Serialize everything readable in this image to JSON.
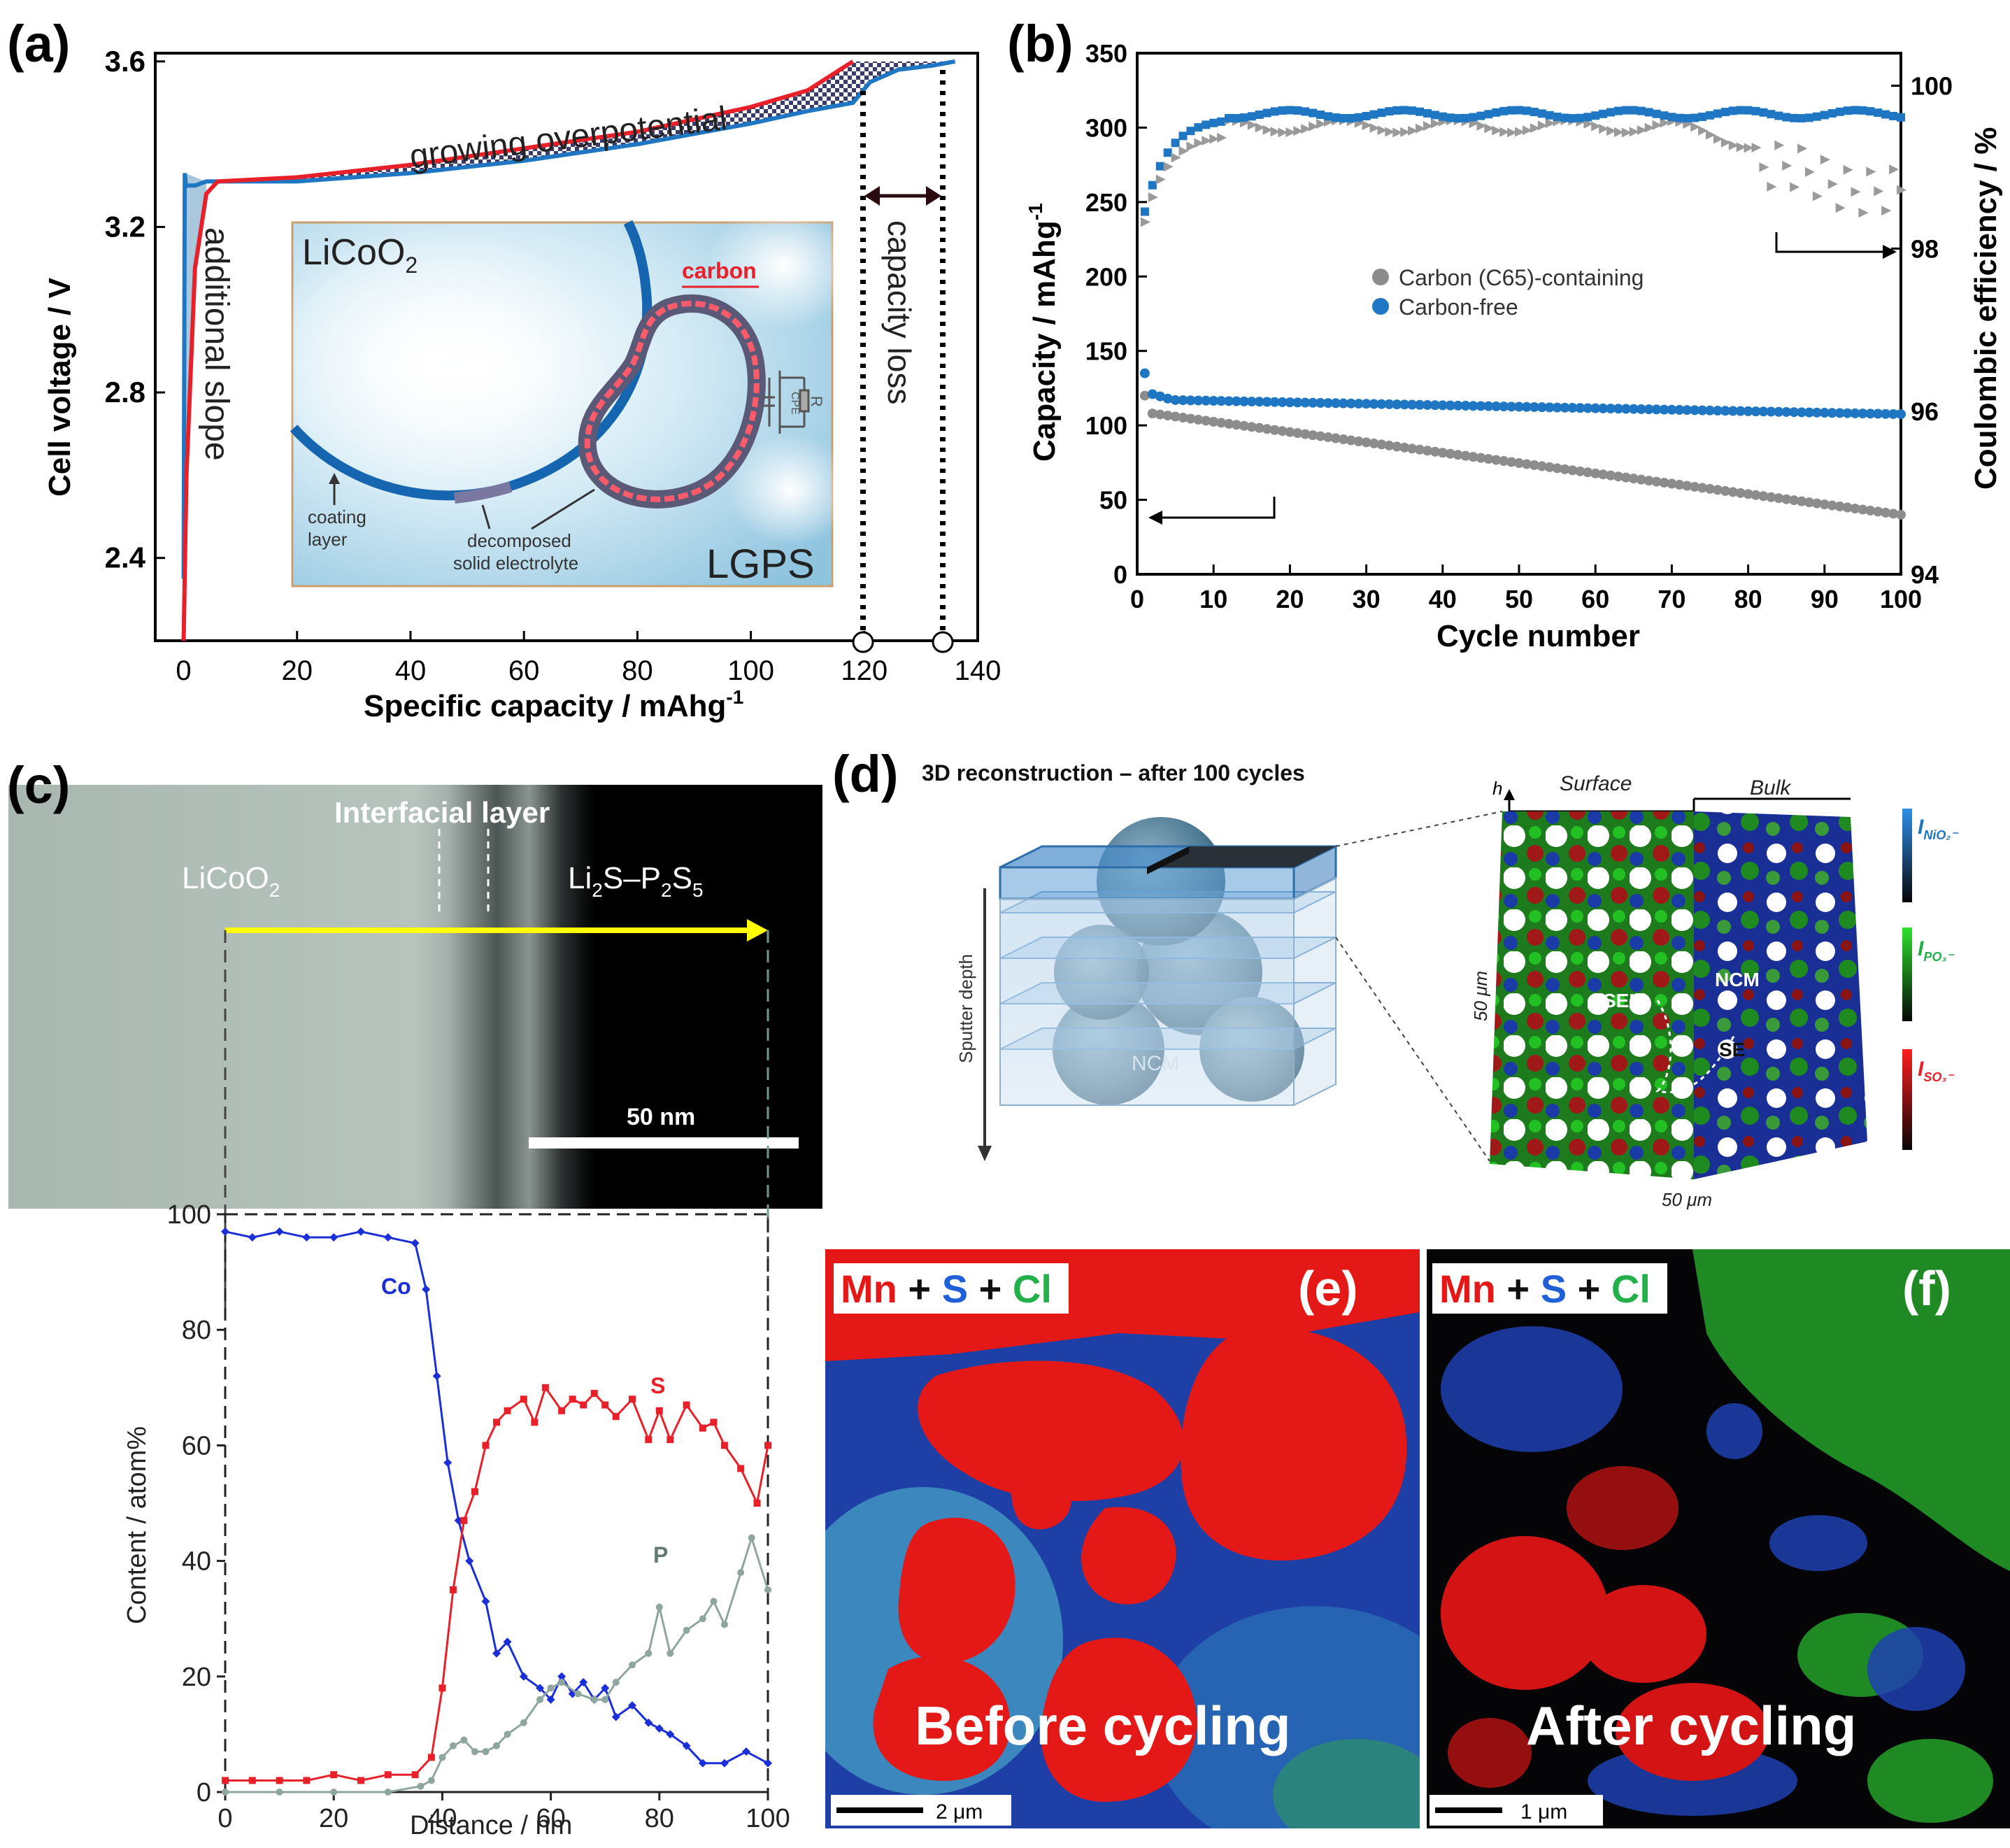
{
  "panels": {
    "a": {
      "label": "(a)",
      "ylabel": "Cell voltage / V",
      "xlabel": "Specific capacity / mAhg",
      "xlabel_sup": "-1",
      "annotations": {
        "growing": "growing overpotential",
        "slope": "additional slope",
        "capacity_loss": "capacity loss"
      },
      "inset": {
        "licoo2_main": "LiCoO",
        "licoo2_sub": "2",
        "carbon": "carbon",
        "coating": "coating",
        "layer": "layer",
        "decomposed": "decomposed",
        "solid_electrolyte": "solid electrolyte",
        "lgps": "LGPS",
        "cpe": "CPE",
        "r": "R"
      }
    },
    "b": {
      "label": "(b)",
      "ylabel_main": "Capacity / mAhg",
      "ylabel_sup": "-1",
      "y2label": "Coulombic efficiency / %",
      "xlabel": "Cycle number"
    },
    "c": {
      "label": "(c)",
      "licoo2_main": "LiCoO",
      "licoo2_sub": "2",
      "interfacial": "Interfacial layer",
      "li2s_a": "Li",
      "li2s_b": "2",
      "li2s_c": "S–P",
      "li2s_d": "2",
      "li2s_e": "S",
      "li2s_f": "5",
      "scale": "50 nm",
      "ylabel": "Content / atom%",
      "xlabel": "Distance / nm",
      "co": "Co",
      "s": "S",
      "p": "P"
    },
    "d": {
      "label": "(d)",
      "title": "3D reconstruction – after 100 cycles",
      "sputter": "Sputter depth",
      "ncm_sphere": "NCM",
      "h": "h",
      "surface": "Surface",
      "bulk": "Bulk",
      "dim_v": "50 μm",
      "dim_h": "50 μm",
      "sei": "SEI",
      "ncm": "NCM",
      "se": "SE",
      "scale1_i": "I",
      "scale1_sub": "NiO₂⁻",
      "scale2_i": "I",
      "scale2_sub": "PO₃⁻",
      "scale3_i": "I",
      "scale3_sub": "SO₃⁻"
    },
    "e": {
      "label": "(e)",
      "mn": "Mn",
      "plus1": " + ",
      "s": "S",
      "plus2": " + ",
      "cl": "Cl",
      "caption": "Before cycling",
      "scale": "2 μm"
    },
    "f": {
      "label": "(f)",
      "mn": "Mn",
      "plus1": " + ",
      "s": "S",
      "plus2": " + ",
      "cl": "Cl",
      "caption": "After cycling",
      "scale": "1 μm"
    }
  },
  "colors": {
    "red": "#e8202a",
    "blue": "#1f77c4",
    "co_blue": "#1b2fd8",
    "p_gray": "#8fa6a0",
    "gray": "#8c8c8c"
  },
  "chart_data": [
    {
      "id": "a",
      "type": "line",
      "xlim": [
        -5,
        140
      ],
      "ylim": [
        2.2,
        3.62
      ],
      "xticks": [
        0,
        20,
        40,
        60,
        80,
        100,
        120,
        140
      ],
      "yticks": [
        2.4,
        2.8,
        3.2,
        3.6
      ],
      "series": [
        {
          "color": "red",
          "x": [
            0,
            0.5,
            2,
            4,
            6,
            20,
            40,
            60,
            80,
            100,
            110,
            118
          ],
          "y": [
            2.2,
            2.6,
            3.1,
            3.28,
            3.31,
            3.32,
            3.35,
            3.39,
            3.43,
            3.49,
            3.53,
            3.6
          ]
        },
        {
          "color": "blue",
          "x": [
            0,
            0.2,
            0.4,
            2,
            4,
            6,
            20,
            40,
            60,
            80,
            100,
            110,
            118,
            121,
            126,
            132,
            136
          ],
          "y": [
            2.35,
            3.33,
            3.3,
            3.3,
            3.31,
            3.31,
            3.31,
            3.33,
            3.36,
            3.4,
            3.45,
            3.48,
            3.5,
            3.55,
            3.58,
            3.59,
            3.6
          ]
        }
      ]
    },
    {
      "id": "b",
      "type": "scatter",
      "xlim": [
        0,
        100
      ],
      "ylim": [
        0,
        350
      ],
      "y2lim": [
        94,
        100.4
      ],
      "xticks": [
        0,
        10,
        20,
        30,
        40,
        50,
        60,
        70,
        80,
        90,
        100
      ],
      "yticks": [
        0,
        50,
        100,
        150,
        200,
        250,
        300,
        350
      ],
      "y2ticks": [
        94,
        96,
        98,
        100
      ],
      "legend": [
        "Carbon (C65)-containing",
        "Carbon-free"
      ],
      "series": [
        {
          "name": "Carbon (C65)-containing",
          "axis": "capacity",
          "start": 120,
          "end": 40
        },
        {
          "name": "Carbon-free",
          "axis": "capacity",
          "start": 135,
          "end": 107
        },
        {
          "name": "Carbon (C65)-containing",
          "axis": "efficiency",
          "plateau": 99.5,
          "end": 98.5
        },
        {
          "name": "Carbon-free",
          "axis": "efficiency",
          "plateau": 99.7,
          "end": 99.6
        }
      ]
    },
    {
      "id": "c",
      "type": "line",
      "xlim": [
        0,
        100
      ],
      "ylim": [
        0,
        100
      ],
      "xticks": [
        0,
        20,
        40,
        60,
        80,
        100
      ],
      "yticks": [
        0,
        20,
        40,
        60,
        80,
        100
      ],
      "series": [
        {
          "name": "Co",
          "color": "co_blue",
          "x": [
            0,
            5,
            10,
            15,
            20,
            25,
            30,
            35,
            37,
            39,
            41,
            43,
            45,
            48,
            50,
            52,
            55,
            58,
            60,
            62,
            64,
            66,
            68,
            70,
            72,
            75,
            78,
            80,
            82,
            85,
            88,
            92,
            96,
            100
          ],
          "y": [
            97,
            96,
            97,
            96,
            96,
            97,
            96,
            95,
            87,
            72,
            57,
            47,
            40,
            33,
            24,
            26,
            20,
            18,
            16,
            20,
            17,
            19,
            16,
            18,
            13,
            15,
            12,
            11,
            10,
            8,
            5,
            5,
            7,
            5
          ]
        },
        {
          "name": "S",
          "color": "red",
          "x": [
            0,
            5,
            10,
            15,
            20,
            25,
            30,
            35,
            38,
            40,
            42,
            44,
            46,
            48,
            50,
            52,
            55,
            57,
            59,
            62,
            64,
            66,
            68,
            70,
            72,
            75,
            78,
            80,
            82,
            85,
            88,
            90,
            92,
            95,
            98,
            100
          ],
          "y": [
            2,
            2,
            2,
            2,
            3,
            2,
            3,
            3,
            6,
            18,
            35,
            47,
            52,
            60,
            64,
            66,
            68,
            64,
            70,
            66,
            68,
            67,
            69,
            67,
            65,
            68,
            61,
            66,
            61,
            67,
            63,
            64,
            60,
            56,
            50,
            60
          ]
        },
        {
          "name": "P",
          "color": "p_gray",
          "x": [
            0,
            10,
            20,
            30,
            36,
            38,
            40,
            42,
            44,
            46,
            48,
            50,
            52,
            55,
            58,
            60,
            62,
            65,
            68,
            70,
            72,
            75,
            78,
            80,
            82,
            85,
            88,
            90,
            92,
            95,
            97,
            100
          ],
          "y": [
            0,
            0,
            0,
            0,
            1,
            2,
            6,
            8,
            9,
            7,
            7,
            8,
            10,
            12,
            16,
            18,
            19,
            17,
            16,
            16,
            19,
            22,
            24,
            32,
            24,
            28,
            30,
            33,
            29,
            38,
            44,
            35
          ]
        }
      ]
    }
  ]
}
